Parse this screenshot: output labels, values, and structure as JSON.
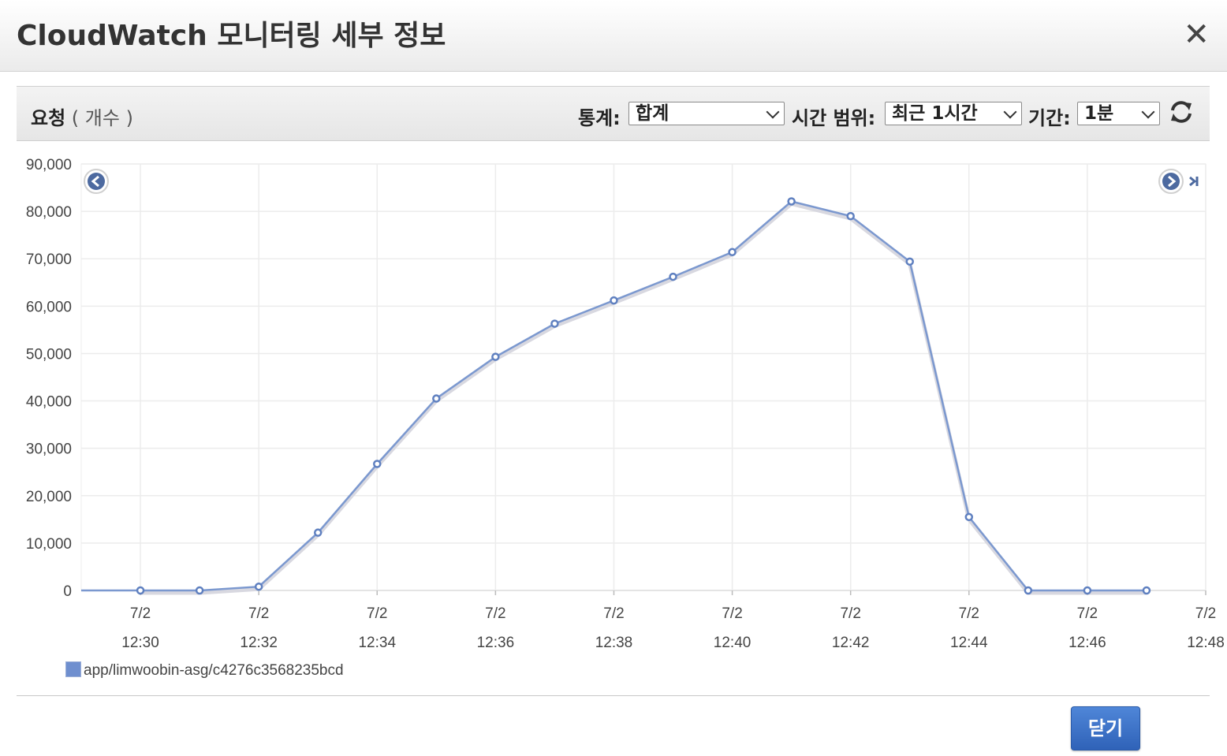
{
  "dialog": {
    "title": "CloudWatch 모니터링 세부 정보",
    "close_glyph": "✕"
  },
  "toolbar": {
    "metric_name": "요청",
    "metric_unit": " ( 개수 )",
    "statistic_label": "통계:",
    "statistic_value": "합계",
    "time_range_label": "시간 범위:",
    "time_range_value": "최근 1시간",
    "period_label": "기간:",
    "period_value": "1분",
    "refresh_icon": "refresh-icon"
  },
  "chart_data": {
    "type": "line",
    "y_ticks": [
      "90,000",
      "80,000",
      "70,000",
      "60,000",
      "50,000",
      "40,000",
      "30,000",
      "20,000",
      "10,000",
      "0"
    ],
    "ylim": [
      0,
      90000
    ],
    "x_ticks": [
      {
        "date": "7/2",
        "time": "12:30"
      },
      {
        "date": "7/2",
        "time": "12:32"
      },
      {
        "date": "7/2",
        "time": "12:34"
      },
      {
        "date": "7/2",
        "time": "12:36"
      },
      {
        "date": "7/2",
        "time": "12:38"
      },
      {
        "date": "7/2",
        "time": "12:40"
      },
      {
        "date": "7/2",
        "time": "12:42"
      },
      {
        "date": "7/2",
        "time": "12:44"
      },
      {
        "date": "7/2",
        "time": "12:46"
      },
      {
        "date": "7/2",
        "time": "12:48"
      }
    ],
    "xlim": [
      "12:29",
      "12:48"
    ],
    "grid": true,
    "legend_position": "bottom-left",
    "series": [
      {
        "name": "app/limwoobin-asg/c4276c3568235bcd",
        "color": "#7b98cf",
        "points": [
          {
            "x": "12:30",
            "y": 0
          },
          {
            "x": "12:31",
            "y": 0
          },
          {
            "x": "12:32",
            "y": 800
          },
          {
            "x": "12:33",
            "y": 12200
          },
          {
            "x": "12:34",
            "y": 26700
          },
          {
            "x": "12:35",
            "y": 40500
          },
          {
            "x": "12:36",
            "y": 49300
          },
          {
            "x": "12:37",
            "y": 56300
          },
          {
            "x": "12:38",
            "y": 61200
          },
          {
            "x": "12:39",
            "y": 66200
          },
          {
            "x": "12:40",
            "y": 71400
          },
          {
            "x": "12:41",
            "y": 82100
          },
          {
            "x": "12:42",
            "y": 79000
          },
          {
            "x": "12:43",
            "y": 69400
          },
          {
            "x": "12:44",
            "y": 15500
          },
          {
            "x": "12:45",
            "y": 0
          },
          {
            "x": "12:46",
            "y": 0
          },
          {
            "x": "12:47",
            "y": 0
          }
        ]
      }
    ]
  },
  "footer": {
    "close_label": "닫기"
  }
}
